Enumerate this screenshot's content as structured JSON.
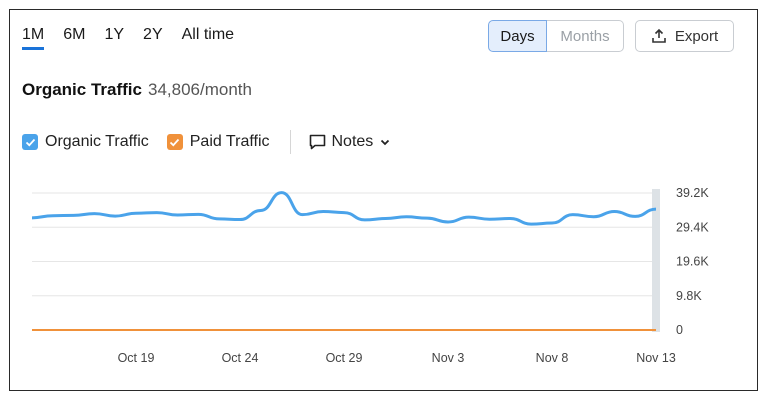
{
  "range_tabs": [
    "1M",
    "6M",
    "1Y",
    "2Y",
    "All time"
  ],
  "active_tab": "1M",
  "granularity": {
    "days_label": "Days",
    "months_label": "Months",
    "selected": "Days"
  },
  "export_label": "Export",
  "summary": {
    "title": "Organic Traffic",
    "value": "34,806/month"
  },
  "legend": {
    "organic": {
      "label": "Organic Traffic",
      "color": "#4aa3ea",
      "checked": true
    },
    "paid": {
      "label": "Paid Traffic",
      "color": "#f0913a",
      "checked": true
    },
    "notes_label": "Notes"
  },
  "chart_data": {
    "type": "line",
    "x": [
      "Oct 14",
      "Oct 15",
      "Oct 16",
      "Oct 17",
      "Oct 18",
      "Oct 19",
      "Oct 20",
      "Oct 21",
      "Oct 22",
      "Oct 23",
      "Oct 24",
      "Oct 25",
      "Oct 26",
      "Oct 27",
      "Oct 28",
      "Oct 29",
      "Oct 30",
      "Oct 31",
      "Nov 1",
      "Nov 2",
      "Nov 3",
      "Nov 4",
      "Nov 5",
      "Nov 6",
      "Nov 7",
      "Nov 8",
      "Nov 9",
      "Nov 10",
      "Nov 11",
      "Nov 12",
      "Nov 13"
    ],
    "x_tick_labels": [
      "Oct 19",
      "Oct 24",
      "Oct 29",
      "Nov 3",
      "Nov 8",
      "Nov 13"
    ],
    "y_tick_labels": [
      "39.2K",
      "29.4K",
      "19.6K",
      "9.8K",
      "0"
    ],
    "ylim": [
      0,
      39200
    ],
    "series": [
      {
        "name": "Organic Traffic",
        "color": "#4aa3ea",
        "values": [
          32100,
          32700,
          32800,
          33300,
          32600,
          33400,
          33600,
          32900,
          33100,
          31800,
          31600,
          34200,
          39300,
          33000,
          33900,
          33600,
          31500,
          31900,
          32400,
          32000,
          30900,
          32300,
          31700,
          31900,
          30300,
          30600,
          33000,
          32400,
          33900,
          32500,
          34600
        ]
      },
      {
        "name": "Paid Traffic",
        "color": "#f0913a",
        "values": [
          0,
          0,
          0,
          0,
          0,
          0,
          0,
          0,
          0,
          0,
          0,
          0,
          0,
          0,
          0,
          0,
          0,
          0,
          0,
          0,
          0,
          0,
          0,
          0,
          0,
          0,
          0,
          0,
          0,
          0,
          0
        ]
      }
    ],
    "grid": true,
    "y_axis_side": "right"
  }
}
